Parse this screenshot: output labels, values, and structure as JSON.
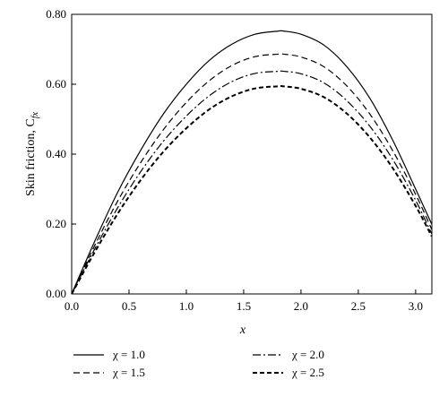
{
  "chart_data": {
    "type": "line",
    "xlabel": "x",
    "ylabel": "Skin friction, C",
    "ylabel_sub": "fx",
    "xlim": [
      0,
      3.14159
    ],
    "ylim": [
      0,
      0.8
    ],
    "x_ticks": [
      "0.0",
      "0.5",
      "1.0",
      "1.5",
      "2.0",
      "2.5",
      "3.0"
    ],
    "y_ticks": [
      "0.00",
      "0.20",
      "0.40",
      "0.60",
      "0.80"
    ],
    "grid": false,
    "legend_position": "bottom",
    "x": [
      0,
      0.2,
      0.4,
      0.6,
      0.8,
      1.0,
      1.2,
      1.4,
      1.6,
      1.8,
      1.85,
      2.0,
      2.2,
      2.4,
      2.6,
      2.8,
      3.0,
      3.14
    ],
    "series": [
      {
        "name": "χ = 1.0",
        "dash": "",
        "width": 1.2,
        "values": [
          0.0,
          0.15,
          0.29,
          0.41,
          0.515,
          0.6,
          0.668,
          0.715,
          0.743,
          0.752,
          0.752,
          0.743,
          0.712,
          0.65,
          0.56,
          0.44,
          0.3,
          0.2
        ]
      },
      {
        "name": "χ = 1.5",
        "dash": "7,4",
        "width": 1.2,
        "values": [
          0.0,
          0.138,
          0.265,
          0.375,
          0.47,
          0.548,
          0.61,
          0.654,
          0.679,
          0.686,
          0.686,
          0.678,
          0.65,
          0.595,
          0.515,
          0.41,
          0.285,
          0.185
        ]
      },
      {
        "name": "χ = 2.0",
        "dash": "9,3,2,3",
        "width": 1.2,
        "values": [
          0.0,
          0.128,
          0.246,
          0.349,
          0.437,
          0.509,
          0.567,
          0.608,
          0.631,
          0.637,
          0.637,
          0.63,
          0.604,
          0.553,
          0.48,
          0.385,
          0.268,
          0.172
        ]
      },
      {
        "name": "χ = 2.5",
        "dash": "5,3",
        "width": 2.0,
        "values": [
          0.0,
          0.119,
          0.229,
          0.325,
          0.407,
          0.474,
          0.528,
          0.566,
          0.588,
          0.594,
          0.594,
          0.587,
          0.563,
          0.516,
          0.448,
          0.36,
          0.252,
          0.165
        ]
      }
    ]
  }
}
